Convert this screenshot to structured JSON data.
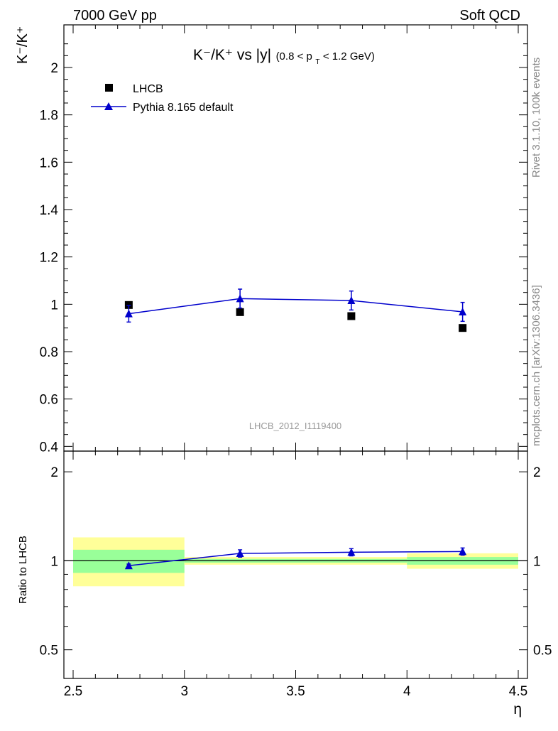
{
  "header": {
    "left": "7000 GeV pp",
    "right": "Soft QCD"
  },
  "side_text": {
    "rivet": "Rivet 3.1.10,  100k events",
    "source": "mcplots.cern.ch [arXiv:1306.3436]"
  },
  "watermark": "LHCB_2012_I1119400",
  "colors": {
    "data": "#000000",
    "mc": "#0000cc",
    "band_inner": "#99ff99",
    "band_outer": "#ffff99"
  },
  "chart_data": [
    {
      "type": "scatter",
      "panel": "main",
      "title": {
        "main": "K⁻/K⁺ vs |y|",
        "cut": "(0.8 < p",
        "cut_sub": "T",
        "cut_end": " < 1.2 GeV)"
      },
      "ylabel": "K⁻/K⁺",
      "xlim": [
        2.5,
        4.5
      ],
      "ylim": [
        0.38,
        2.18
      ],
      "yticks": [
        0.4,
        0.6,
        0.8,
        1,
        1.2,
        1.4,
        1.6,
        1.8,
        2
      ],
      "ytick_labels": [
        "0.4",
        "0.6",
        "0.8",
        "1",
        "1.2",
        "1.4",
        "1.6",
        "1.8",
        "2"
      ],
      "legend_position": "top-left",
      "grid": false,
      "series": [
        {
          "name": "LHCB",
          "marker": "square",
          "x": [
            2.75,
            3.25,
            3.75,
            4.25
          ],
          "xerr": [
            0.25,
            0.25,
            0.25,
            0.25
          ],
          "y": [
            0.997,
            0.967,
            0.95,
            0.9
          ],
          "yerr": [
            0.02,
            0.01,
            0.01,
            0.01
          ]
        },
        {
          "name": "Pythia 8.165 default",
          "marker": "triangle",
          "x": [
            2.75,
            3.25,
            3.75,
            4.25
          ],
          "y": [
            0.96,
            1.024,
            1.016,
            0.968
          ],
          "yerr": [
            0.035,
            0.04,
            0.04,
            0.04
          ]
        }
      ]
    },
    {
      "type": "line",
      "panel": "ratio",
      "ylabel": "Ratio to LHCB",
      "xlabel": "η",
      "xlim": [
        2.5,
        4.5
      ],
      "ylim": [
        0.4,
        2.35
      ],
      "log_y": true,
      "xticks": [
        2.5,
        3,
        3.5,
        4,
        4.5
      ],
      "xtick_labels": [
        "2.5",
        "3",
        "3.5",
        "4",
        "4.5"
      ],
      "yticks": [
        0.5,
        1,
        2
      ],
      "ytick_labels": [
        "0.5",
        "1",
        "2"
      ],
      "bands": {
        "bins": [
          [
            2.5,
            3
          ],
          [
            3,
            3.5
          ],
          [
            3.5,
            4
          ],
          [
            4,
            4.5
          ]
        ],
        "inner": [
          [
            0.91,
            1.09
          ],
          [
            0.985,
            1.015
          ],
          [
            0.985,
            1.015
          ],
          [
            0.97,
            1.03
          ]
        ],
        "outer": [
          [
            0.82,
            1.2
          ],
          [
            0.97,
            1.03
          ],
          [
            0.97,
            1.03
          ],
          [
            0.94,
            1.06
          ]
        ]
      },
      "series": [
        {
          "name": "Pythia 8.165 default",
          "x": [
            2.75,
            3.25,
            3.75,
            4.25
          ],
          "y": [
            0.963,
            1.059,
            1.069,
            1.075
          ],
          "yerr": [
            0.012,
            0.03,
            0.03,
            0.03
          ]
        }
      ]
    }
  ]
}
